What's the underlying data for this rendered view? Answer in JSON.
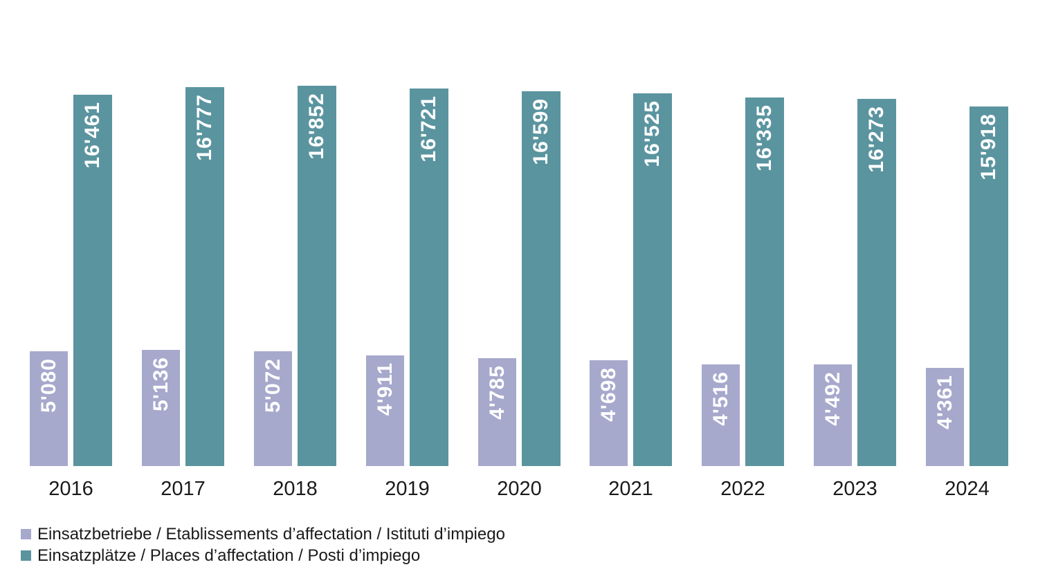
{
  "chart_data": {
    "type": "bar",
    "categories": [
      "2016",
      "2017",
      "2018",
      "2019",
      "2020",
      "2021",
      "2022",
      "2023",
      "2024"
    ],
    "series": [
      {
        "name": "Einsatzbetriebe / Etablissements d’affectation / Istituti d’impiego",
        "color": "#a6a8cc",
        "values": [
          5080,
          5136,
          5072,
          4911,
          4785,
          4698,
          4516,
          4492,
          4361
        ],
        "labels": [
          "5'080",
          "5'136",
          "5'072",
          "4'911",
          "4'785",
          "4'698",
          "4'516",
          "4'492",
          "4'361"
        ]
      },
      {
        "name": "Einsatzplätze / Places d’affectation / Posti d’impiego",
        "color": "#5a949f",
        "values": [
          16461,
          16777,
          16852,
          16721,
          16599,
          16525,
          16335,
          16273,
          15918
        ],
        "labels": [
          "16'461",
          "16'777",
          "16'852",
          "16'721",
          "16'599",
          "16'525",
          "16'335",
          "16'273",
          "15'918"
        ]
      }
    ],
    "title": "",
    "xlabel": "",
    "ylabel": "",
    "ylim": [
      0,
      16852
    ],
    "grid": false,
    "legend_position": "bottom-left",
    "value_label_color": "#ffffff",
    "axis_label_color": "#1a1a1a"
  }
}
